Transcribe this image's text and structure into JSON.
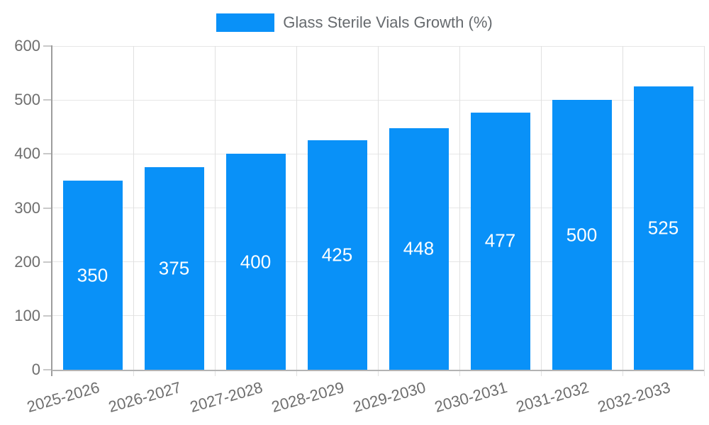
{
  "chart_data": {
    "type": "bar",
    "title": "",
    "legend": {
      "label": "Glass Sterile Vials Growth (%)",
      "position": "top"
    },
    "categories": [
      "2025-2026",
      "2026-2027",
      "2027-2028",
      "2028-2029",
      "2029-2030",
      "2030-2031",
      "2031-2032",
      "2032-2033"
    ],
    "values": [
      350,
      375,
      400,
      425,
      448,
      477,
      500,
      525
    ],
    "xlabel": "",
    "ylabel": "",
    "ylim": [
      0,
      600
    ],
    "yticks": [
      0,
      100,
      200,
      300,
      400,
      500,
      600
    ],
    "grid": true,
    "x_label_rotation_deg": -16,
    "colors": {
      "bar": "#0991f8",
      "bar_value_text": "#ffffff",
      "axis_text": "#6e6e6e",
      "legend_text": "#666a6e",
      "gridline": "#e6e6e6",
      "axis_line": "#9d9d9d"
    }
  }
}
